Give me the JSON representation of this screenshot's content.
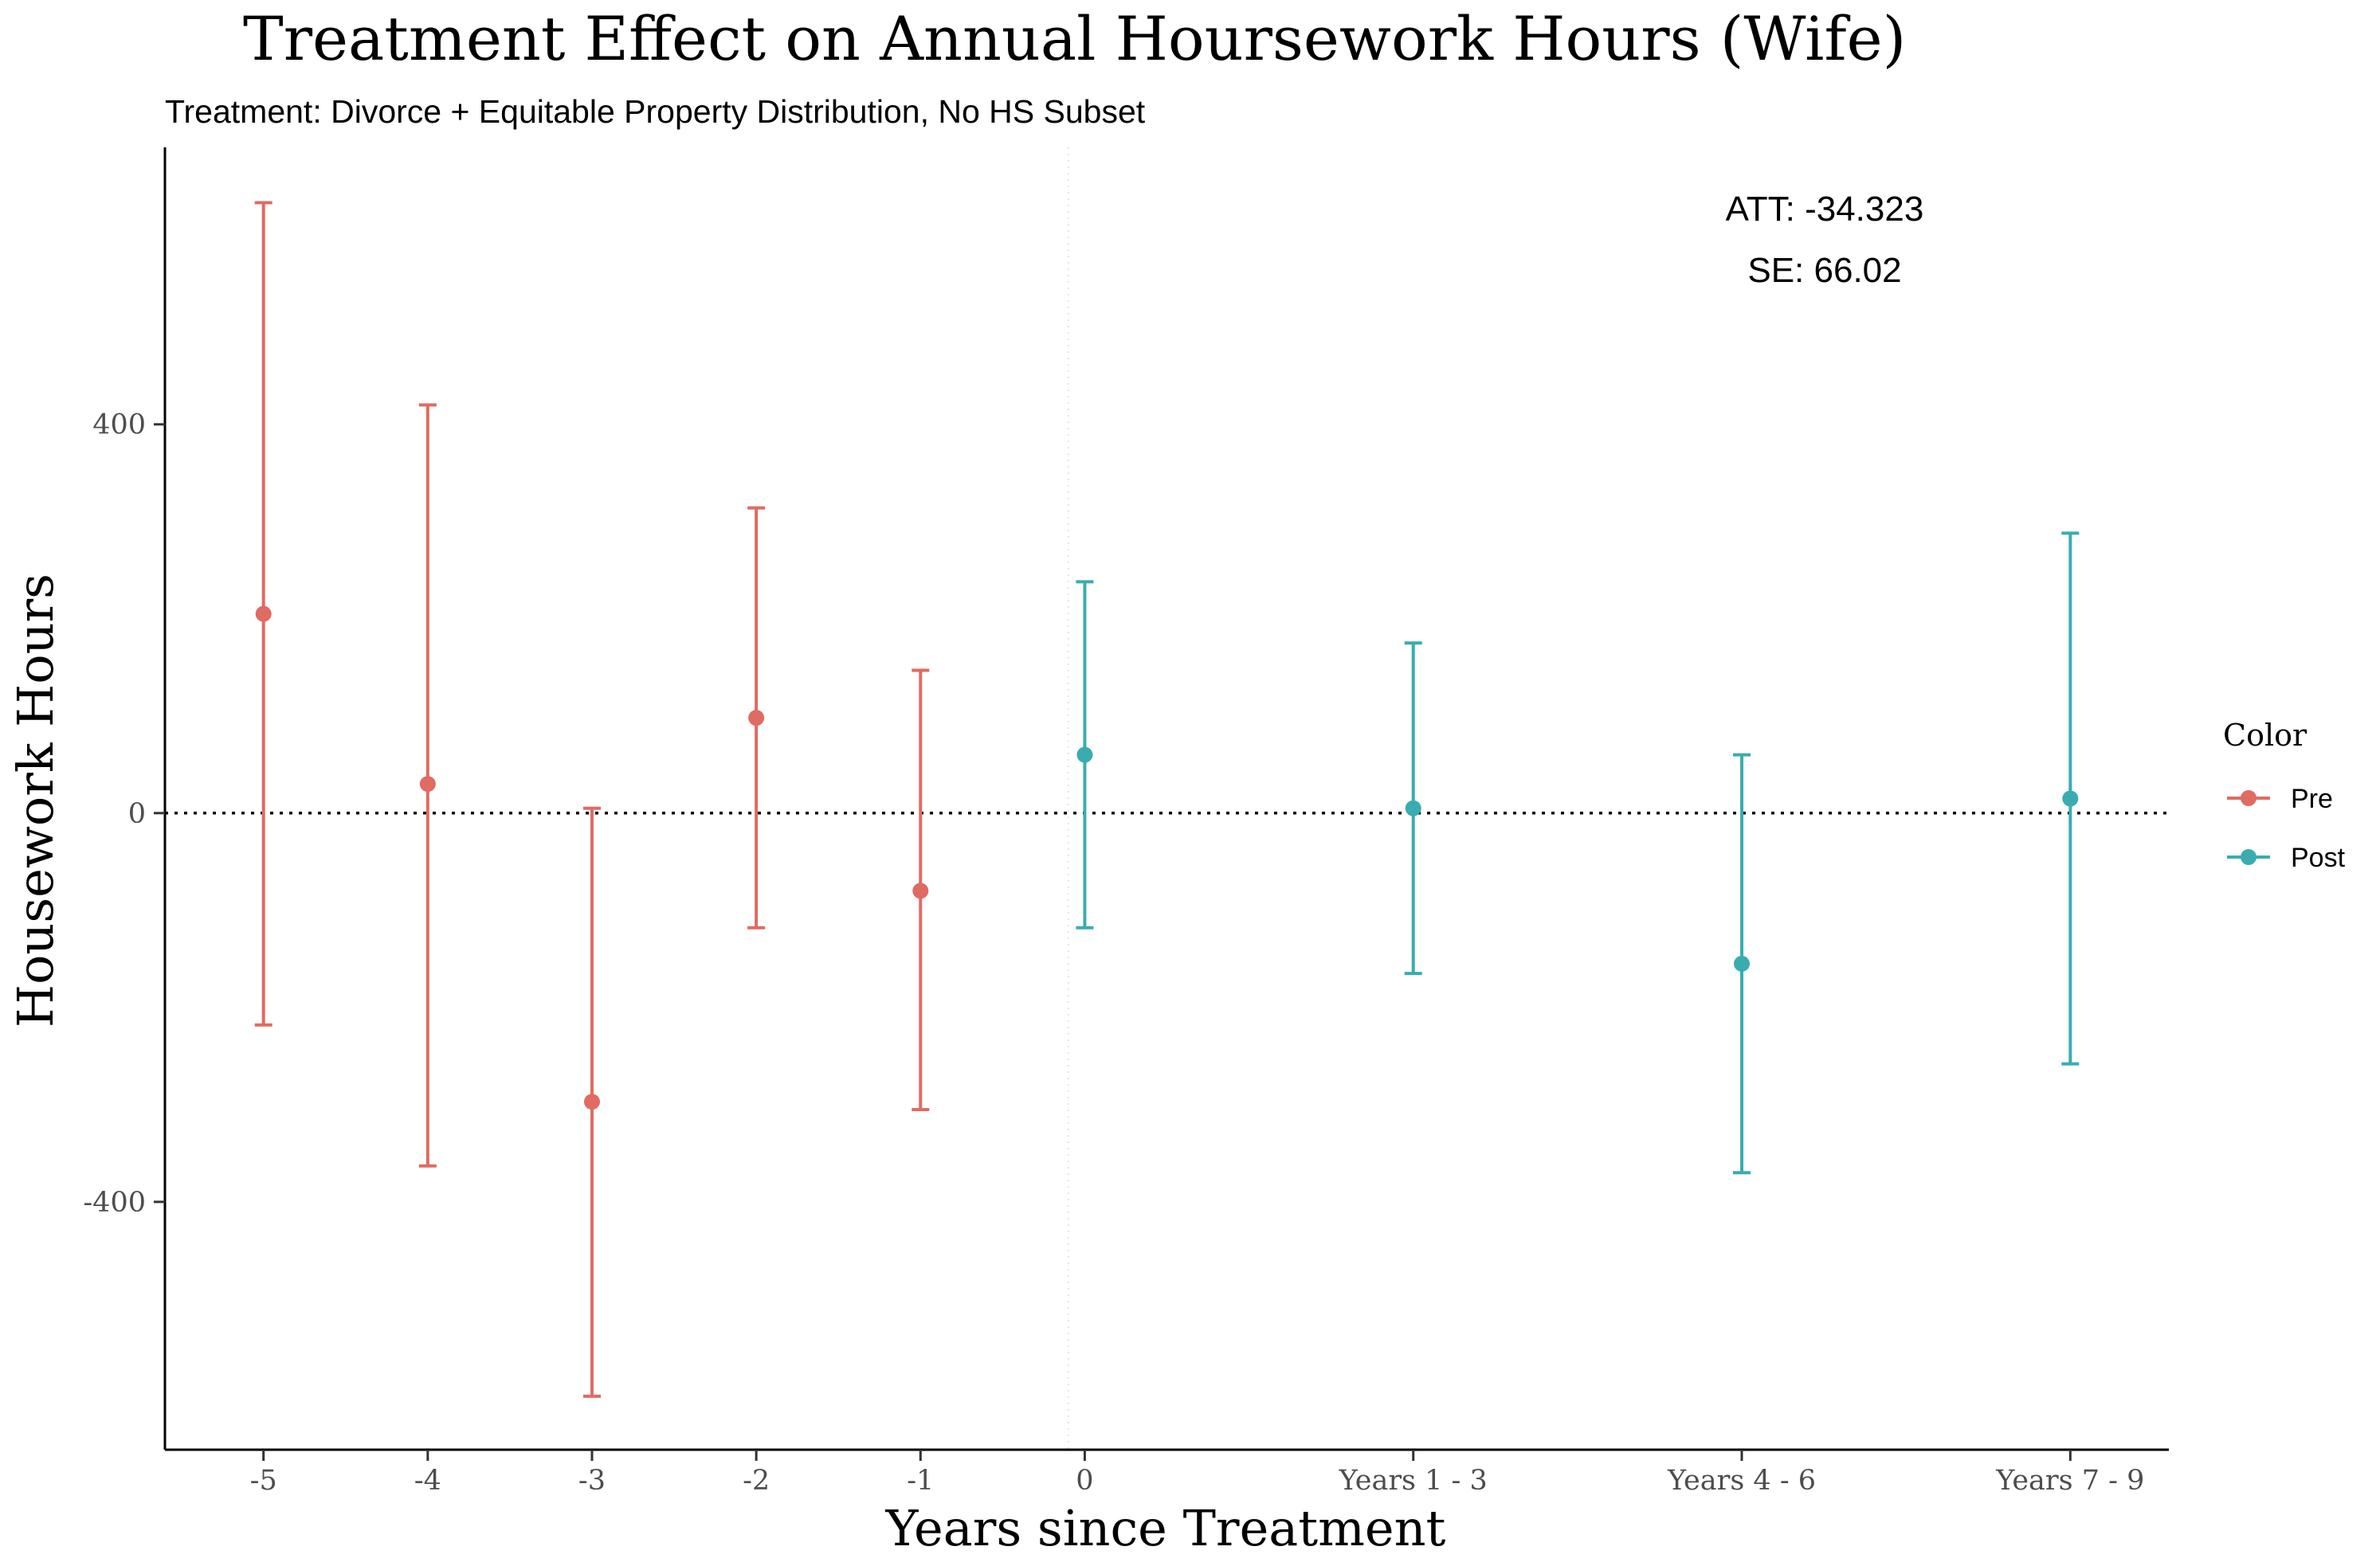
{
  "chart_data": {
    "type": "scatter",
    "title": "Treatment Effect on Annual Hoursework Hours (Wife)",
    "subtitle": "Treatment: Divorce + Equitable Property Distribution, No HS Subset",
    "xlabel": "Years since Treatment",
    "ylabel": "Housework Hours",
    "categories": [
      "-5",
      "-4",
      "-3",
      "-2",
      "-1",
      "0",
      "Years 1 - 3",
      "Years 4 - 6",
      "Years 7 - 9"
    ],
    "x_positions": [
      -5,
      -4,
      -3,
      -2,
      -1,
      0,
      2,
      4,
      6
    ],
    "xlim": [
      -5.6,
      6.6
    ],
    "ylim": [
      -655,
      685
    ],
    "yticks": [
      -400,
      0,
      400
    ],
    "reference_lines": {
      "horizontal_y": 0,
      "vertical_x": -0.1
    },
    "grid": false,
    "legend_position": "right",
    "legend_title": "Color",
    "annotations": [
      "ATT: -34.323",
      "SE:  66.02"
    ],
    "series": [
      {
        "name": "Pre",
        "color": "#e06b62",
        "points": [
          {
            "x": -5,
            "y": 205,
            "lo": -218,
            "hi": 628
          },
          {
            "x": -4,
            "y": 30,
            "lo": -363,
            "hi": 420
          },
          {
            "x": -3,
            "y": -297,
            "lo": -600,
            "hi": 5
          },
          {
            "x": -2,
            "y": 98,
            "lo": -118,
            "hi": 314
          },
          {
            "x": -1,
            "y": -80,
            "lo": -305,
            "hi": 147
          }
        ]
      },
      {
        "name": "Post",
        "color": "#3aacb0",
        "points": [
          {
            "x": 0,
            "y": 60,
            "lo": -118,
            "hi": 238
          },
          {
            "x": 2,
            "y": 5,
            "lo": -165,
            "hi": 175
          },
          {
            "x": 4,
            "y": -155,
            "lo": -370,
            "hi": 60
          },
          {
            "x": 6,
            "y": 15,
            "lo": -258,
            "hi": 288
          }
        ]
      }
    ]
  }
}
